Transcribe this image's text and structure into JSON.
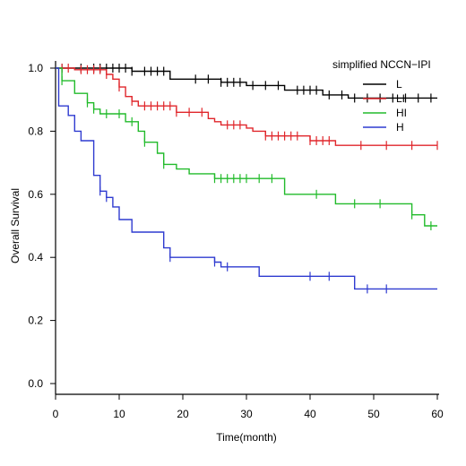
{
  "chart_data": {
    "type": "line",
    "xlabel": "Time(month)",
    "ylabel": "Overall Survival",
    "xlim": [
      0,
      60
    ],
    "ylim": [
      0,
      1.0
    ],
    "xticks": [
      "0",
      "10",
      "20",
      "30",
      "40",
      "50",
      "60"
    ],
    "yticks": [
      "0.0",
      "0.2",
      "0.4",
      "0.6",
      "0.8",
      "1.0"
    ],
    "grid": false,
    "legend": {
      "title": "simplified NCCN−IPI",
      "position": "top-right"
    },
    "series": [
      {
        "name": "L",
        "color": "#000000",
        "steps": [
          [
            0,
            1.0
          ],
          [
            12,
            0.99
          ],
          [
            18,
            0.965
          ],
          [
            26,
            0.955
          ],
          [
            30,
            0.945
          ],
          [
            36,
            0.93
          ],
          [
            42,
            0.915
          ],
          [
            46,
            0.905
          ],
          [
            60,
            0.905
          ]
        ],
        "censor": [
          1,
          4,
          6,
          7,
          8,
          9,
          10,
          11,
          12,
          14,
          15,
          16,
          17,
          22,
          24,
          26,
          27,
          28,
          29,
          31,
          33,
          35,
          38,
          39,
          40,
          41,
          43,
          45,
          47,
          49,
          51,
          53,
          55,
          57,
          59
        ]
      },
      {
        "name": "LI",
        "color": "#e0262b",
        "steps": [
          [
            0,
            1.0
          ],
          [
            3,
            0.995
          ],
          [
            8,
            0.98
          ],
          [
            9,
            0.965
          ],
          [
            10,
            0.94
          ],
          [
            11,
            0.91
          ],
          [
            12,
            0.895
          ],
          [
            13,
            0.88
          ],
          [
            19,
            0.86
          ],
          [
            24,
            0.84
          ],
          [
            25,
            0.83
          ],
          [
            26,
            0.82
          ],
          [
            30,
            0.81
          ],
          [
            31,
            0.8
          ],
          [
            33,
            0.785
          ],
          [
            40,
            0.77
          ],
          [
            44,
            0.755
          ],
          [
            60,
            0.755
          ]
        ],
        "censor": [
          1,
          2,
          4,
          5,
          6,
          7,
          8,
          10,
          12,
          14,
          15,
          16,
          17,
          18,
          19,
          21,
          23,
          27,
          28,
          29,
          33,
          34,
          35,
          36,
          37,
          38,
          40,
          41,
          42,
          43,
          48,
          52,
          56,
          60
        ]
      },
      {
        "name": "HI",
        "color": "#22bb2b",
        "steps": [
          [
            0,
            1.0
          ],
          [
            1,
            0.96
          ],
          [
            3,
            0.92
          ],
          [
            5,
            0.89
          ],
          [
            6,
            0.87
          ],
          [
            7,
            0.855
          ],
          [
            11,
            0.83
          ],
          [
            13,
            0.8
          ],
          [
            14,
            0.765
          ],
          [
            16,
            0.73
          ],
          [
            17,
            0.695
          ],
          [
            19,
            0.68
          ],
          [
            21,
            0.665
          ],
          [
            25,
            0.65
          ],
          [
            36,
            0.6
          ],
          [
            44,
            0.57
          ],
          [
            56,
            0.535
          ],
          [
            58,
            0.5
          ],
          [
            60,
            0.5
          ]
        ],
        "censor": [
          1,
          5,
          6,
          8,
          10,
          12,
          14,
          17,
          25,
          26,
          27,
          28,
          29,
          30,
          32,
          34,
          41,
          47,
          51,
          56,
          59
        ]
      },
      {
        "name": "H",
        "color": "#2f3bd0",
        "steps": [
          [
            0,
            1.0
          ],
          [
            0.5,
            0.88
          ],
          [
            2,
            0.85
          ],
          [
            3,
            0.8
          ],
          [
            4,
            0.77
          ],
          [
            6,
            0.66
          ],
          [
            7,
            0.61
          ],
          [
            8,
            0.59
          ],
          [
            9,
            0.56
          ],
          [
            10,
            0.52
          ],
          [
            12,
            0.48
          ],
          [
            17,
            0.43
          ],
          [
            18,
            0.4
          ],
          [
            25,
            0.385
          ],
          [
            26,
            0.37
          ],
          [
            32,
            0.34
          ],
          [
            47,
            0.3
          ],
          [
            60,
            0.3
          ]
        ],
        "censor": [
          7,
          8,
          18,
          25,
          27,
          40,
          43,
          49,
          52
        ]
      }
    ]
  },
  "colors": {
    "axis": "#000000",
    "background": "#ffffff"
  }
}
